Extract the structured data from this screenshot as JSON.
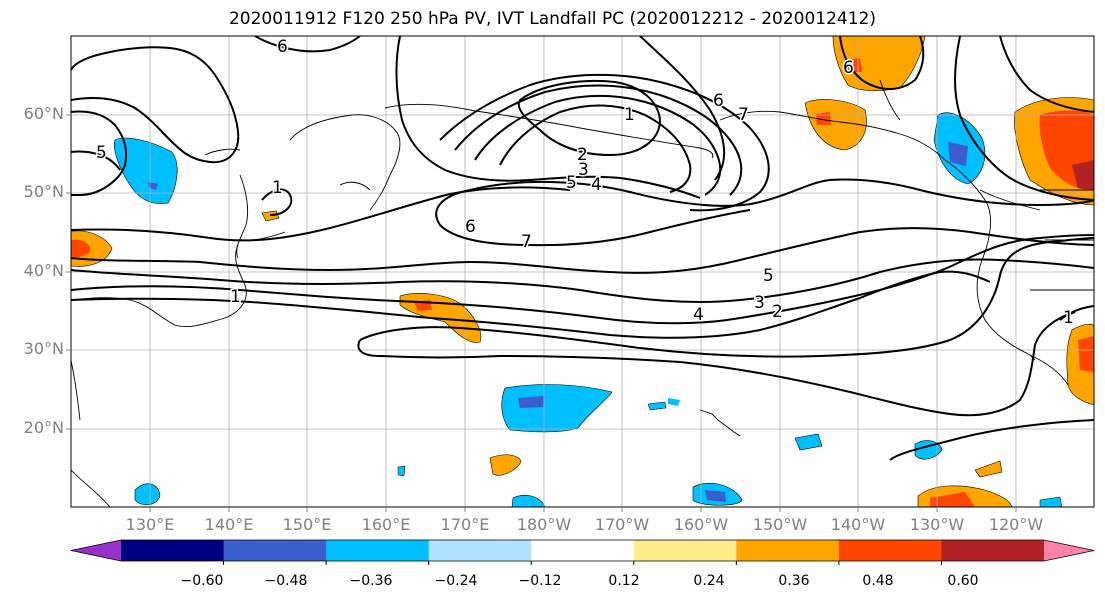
{
  "title": "2020011912 F120 250 hPa PV, IVT Landfall PC (2020012212 - 2020012412)",
  "lat_labels": [
    "60°N",
    "50°N",
    "40°N",
    "30°N",
    "20°N"
  ],
  "lon_labels": [
    "130°E",
    "140°E",
    "150°E",
    "160°E",
    "170°E",
    "180°W",
    "170°W",
    "160°W",
    "150°W",
    "140°W",
    "130°W",
    "120°W"
  ],
  "contour_labels": [
    "6",
    "5",
    "1",
    "1",
    "6",
    "7",
    "2",
    "3",
    "4",
    "5",
    "6",
    "7",
    "5",
    "4",
    "3",
    "2",
    "1",
    "6",
    "1"
  ],
  "colorbar": {
    "tick_labels": [
      "−0.60",
      "−0.48",
      "−0.36",
      "−0.24",
      "−0.12",
      "0.12",
      "0.24",
      "0.36",
      "0.48",
      "0.60"
    ],
    "colors": [
      "#9932CC",
      "#000080",
      "#3A5FCD",
      "#00BFFF",
      "#B0E2FF",
      "#FFFFFF",
      "#FFEC8B",
      "#FFA500",
      "#FF4500",
      "#B22222",
      "#FF82AB"
    ]
  }
}
